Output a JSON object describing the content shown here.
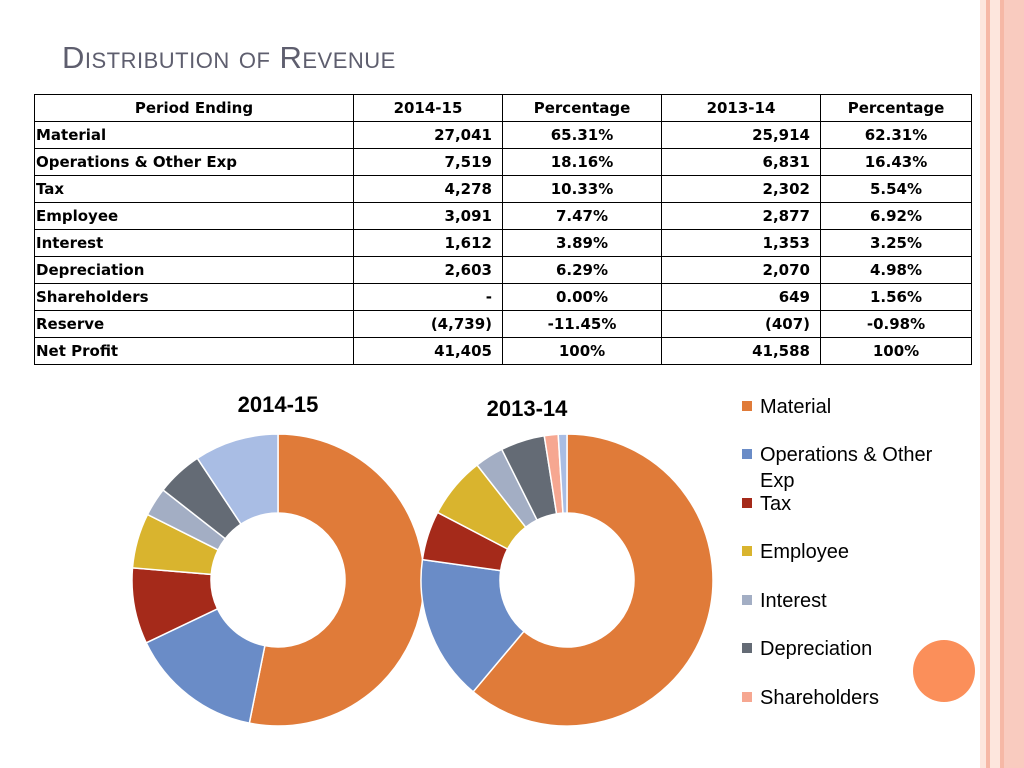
{
  "slide": {
    "title": "Distribution of Revenue",
    "colors": {
      "edge_pink": "#f9cbbf",
      "edge_light": "#fde6dd",
      "accent_circle": "#fb8f5a",
      "title": "#5e5e6e"
    }
  },
  "table": {
    "headers": [
      "Period Ending",
      "2014-15",
      "Percentage",
      "2013-14",
      "Percentage"
    ],
    "rows": [
      [
        "Material",
        "27,041",
        "65.31%",
        "25,914",
        "62.31%"
      ],
      [
        "Operations & Other Exp",
        "7,519",
        "18.16%",
        "6,831",
        "16.43%"
      ],
      [
        "Tax",
        "4,278",
        "10.33%",
        "2,302",
        "5.54%"
      ],
      [
        "Employee",
        "3,091",
        "7.47%",
        "2,877",
        "6.92%"
      ],
      [
        "Interest",
        "1,612",
        "3.89%",
        "1,353",
        "3.25%"
      ],
      [
        "Depreciation",
        "2,603",
        "6.29%",
        "2,070",
        "4.98%"
      ],
      [
        "Shareholders",
        "-",
        "0.00%",
        "649",
        "1.56%"
      ],
      [
        "Reserve",
        "(4,739)",
        "-11.45%",
        "(407)",
        "-0.98%"
      ],
      [
        "Net Profit",
        "41,405",
        "100%",
        "41,588",
        "100%"
      ]
    ]
  },
  "chart_data": [
    {
      "type": "pie",
      "title": "2014-15",
      "categories": [
        "Material",
        "Operations & Other Exp",
        "Tax",
        "Employee",
        "Interest",
        "Depreciation",
        "Shareholders",
        "Reserve"
      ],
      "values": [
        27041,
        7519,
        4278,
        3091,
        1612,
        2603,
        0,
        4739
      ],
      "colors": [
        "#e07b39",
        "#6a8cc7",
        "#a52a1a",
        "#d9b42e",
        "#a3aec4",
        "#646b75",
        "#f6a791",
        "#a9bde4"
      ]
    },
    {
      "type": "pie",
      "title": "2013-14",
      "categories": [
        "Material",
        "Operations & Other Exp",
        "Tax",
        "Employee",
        "Interest",
        "Depreciation",
        "Shareholders",
        "Reserve"
      ],
      "values": [
        25914,
        6831,
        2302,
        2877,
        1353,
        2070,
        649,
        407
      ],
      "colors": [
        "#e07b39",
        "#6a8cc7",
        "#a52a1a",
        "#d9b42e",
        "#a3aec4",
        "#646b75",
        "#f6a791",
        "#a9bde4"
      ]
    }
  ],
  "legend": {
    "entries": [
      "Material",
      "Operations & Other Exp",
      "Tax",
      "Employee",
      "Interest",
      "Depreciation",
      "Shareholders"
    ],
    "colors": [
      "#e07b39",
      "#6a8cc7",
      "#a52a1a",
      "#d9b42e",
      "#a3aec4",
      "#646b75",
      "#f6a791"
    ]
  }
}
